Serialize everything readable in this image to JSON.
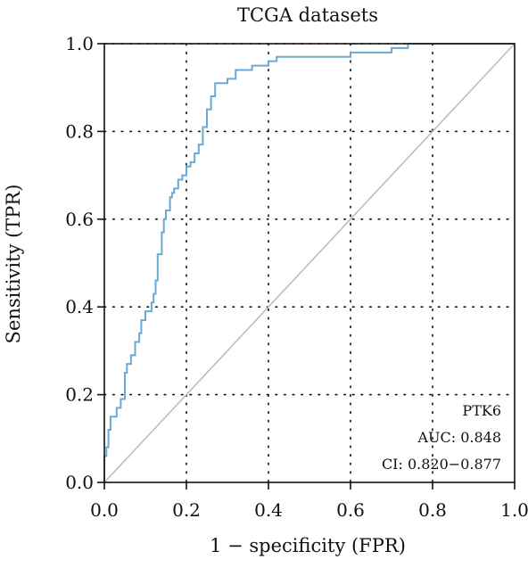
{
  "chart_data": {
    "type": "line",
    "title": "TCGA datasets",
    "xlabel": "1 − specificity (FPR)",
    "ylabel": "Sensitivity (TPR)",
    "xlim": [
      0,
      1
    ],
    "ylim": [
      0,
      1
    ],
    "x_ticks": [
      "0.0",
      "0.2",
      "0.4",
      "0.6",
      "0.8",
      "1.0"
    ],
    "y_ticks": [
      "0.0",
      "0.2",
      "0.4",
      "0.6",
      "0.8",
      "1.0"
    ],
    "grid": "dotted",
    "annotation": {
      "label": "PTK6",
      "auc": "AUC: 0.848",
      "ci": "CI: 0.820−0.877"
    },
    "colors": {
      "roc": "#6aaad2",
      "diagonal": "#bdbdbd"
    },
    "series": [
      {
        "name": "PTK6",
        "x": [
          0,
          0,
          0.005,
          0.005,
          0.01,
          0.01,
          0.015,
          0.015,
          0.03,
          0.03,
          0.04,
          0.04,
          0.05,
          0.05,
          0.055,
          0.055,
          0.065,
          0.065,
          0.075,
          0.075,
          0.085,
          0.085,
          0.09,
          0.09,
          0.1,
          0.1,
          0.115,
          0.115,
          0.12,
          0.12,
          0.125,
          0.125,
          0.13,
          0.13,
          0.14,
          0.14,
          0.145,
          0.145,
          0.15,
          0.15,
          0.16,
          0.16,
          0.165,
          0.165,
          0.17,
          0.17,
          0.18,
          0.18,
          0.19,
          0.19,
          0.2,
          0.2,
          0.21,
          0.21,
          0.22,
          0.22,
          0.23,
          0.23,
          0.24,
          0.24,
          0.25,
          0.25,
          0.26,
          0.26,
          0.27,
          0.27,
          0.3,
          0.3,
          0.32,
          0.32,
          0.36,
          0.36,
          0.4,
          0.4,
          0.42,
          0.42,
          0.6,
          0.6,
          0.7,
          0.7,
          0.74,
          0.74,
          1.0
        ],
        "y": [
          0,
          0.06,
          0.06,
          0.08,
          0.08,
          0.12,
          0.12,
          0.15,
          0.15,
          0.17,
          0.17,
          0.19,
          0.19,
          0.25,
          0.25,
          0.27,
          0.27,
          0.29,
          0.29,
          0.32,
          0.32,
          0.34,
          0.34,
          0.37,
          0.37,
          0.39,
          0.39,
          0.41,
          0.41,
          0.43,
          0.43,
          0.46,
          0.46,
          0.52,
          0.52,
          0.57,
          0.57,
          0.6,
          0.6,
          0.62,
          0.62,
          0.65,
          0.65,
          0.66,
          0.66,
          0.67,
          0.67,
          0.69,
          0.69,
          0.7,
          0.7,
          0.72,
          0.72,
          0.73,
          0.73,
          0.75,
          0.75,
          0.77,
          0.77,
          0.81,
          0.81,
          0.85,
          0.85,
          0.88,
          0.88,
          0.91,
          0.91,
          0.92,
          0.92,
          0.94,
          0.94,
          0.95,
          0.95,
          0.96,
          0.96,
          0.97,
          0.97,
          0.98,
          0.98,
          0.99,
          0.99,
          1.0,
          1.0
        ]
      }
    ]
  }
}
